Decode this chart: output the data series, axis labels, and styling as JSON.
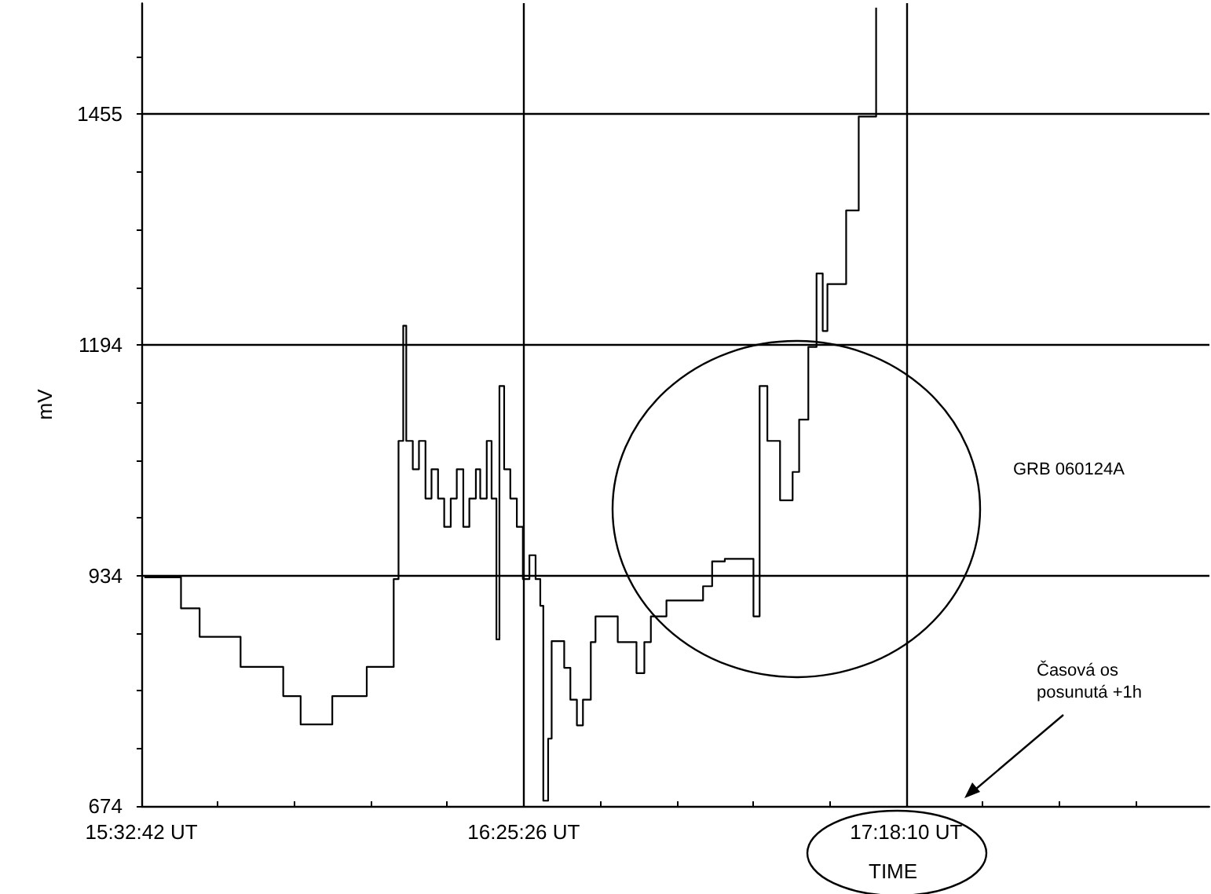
{
  "chart_data": {
    "type": "step",
    "xlabel": "TIME",
    "ylabel": "mV",
    "annotations": [
      "GRB 060124A",
      "Časová os posunutá +1h"
    ],
    "x": [
      "--01-24T15:33:07",
      "--01-24T15:38:10",
      "--01-24T15:40:44",
      "--01-24T15:46:23",
      "--01-24T15:52:16",
      "--01-24T15:54:40",
      "--01-24T15:59:02",
      "--01-24T16:03:47",
      "--01-24T16:07:05",
      "--01-24T16:07:30",
      "--01-24T16:08:10",
      "--01-24T16:08:49",
      "--01-24T16:09:14",
      "--01-24T16:10:08",
      "--01-24T16:10:59",
      "--01-24T16:11:53",
      "--01-24T16:12:43",
      "--01-24T16:13:37",
      "--01-24T16:14:28",
      "--01-24T16:15:22",
      "--01-24T16:16:12",
      "--01-24T16:17:06",
      "--01-24T16:17:56",
      "--01-24T16:18:50",
      "--01-24T16:19:26",
      "--01-24T16:20:20",
      "--01-24T16:21:00",
      "--01-24T16:21:40",
      "--01-24T16:22:05",
      "--01-24T16:22:44",
      "--01-24T16:23:35",
      "--01-24T16:24:29",
      "--01-24T16:25:19",
      "--01-24T16:26:13",
      "--01-24T16:27:04",
      "--01-24T16:27:43",
      "--01-24T16:28:08",
      "--01-24T16:28:48",
      "--01-24T16:29:17",
      "--01-24T16:31:01",
      "--01-24T16:31:52",
      "--01-24T16:32:46",
      "--01-24T16:33:36",
      "--01-24T16:34:41",
      "--01-24T16:35:20",
      "--01-24T16:38:24",
      "--01-24T16:40:59",
      "--01-24T16:42:04",
      "--01-24T16:42:58",
      "--01-24T16:45:07",
      "--01-24T16:50:10",
      "--01-24T16:51:25",
      "--01-24T16:53:10",
      "--01-24T16:57:07",
      "--01-24T16:57:58",
      "--01-24T16:59:02",
      "--01-24T17:00:47",
      "--01-24T17:02:31",
      "--01-24T17:03:25",
      "--01-24T17:04:41",
      "--01-24T17:05:49",
      "--01-24T17:06:40",
      "--01-24T17:07:19",
      "--01-24T17:09:54",
      "--01-24T17:11:38",
      "--01-24T17:14:02"
    ],
    "series": [
      {
        "color": "#000000",
        "values": [
          932,
          897,
          865,
          831,
          798,
          766,
          798,
          831,
          831,
          930,
          1086,
          1216,
          1086,
          1054,
          1086,
          1021,
          1054,
          1021,
          989,
          1021,
          1054,
          989,
          1021,
          1054,
          1021,
          1086,
          1021,
          862,
          1148,
          1054,
          1021,
          989,
          930,
          957,
          930,
          900,
          680,
          750,
          860,
          830,
          794,
          765,
          794,
          859,
          888,
          859,
          824,
          859,
          888,
          906,
          922,
          950,
          953,
          888,
          1148,
          1086,
          1019,
          1051,
          1110,
          1192,
          1275,
          1210,
          1263,
          1346,
          1452,
          1575
        ]
      }
    ],
    "xlim": [
      "--01-24T15:32:42",
      "--01-24T18:00:00"
    ],
    "xticks": [
      {
        "value": "--01-24T15:32:42",
        "label": "15:32:42 UT"
      },
      {
        "value": "--01-24T15:43:15",
        "label": null
      },
      {
        "value": "--01-24T15:53:48",
        "label": null
      },
      {
        "value": "--01-24T16:04:20",
        "label": null
      },
      {
        "value": "--01-24T16:14:53",
        "label": null
      },
      {
        "value": "--01-24T16:25:26",
        "label": "16:25:26 UT"
      },
      {
        "value": "--01-24T16:35:59",
        "label": null
      },
      {
        "value": "--01-24T16:46:31",
        "label": null
      },
      {
        "value": "--01-24T16:57:04",
        "label": null
      },
      {
        "value": "--01-24T17:07:37",
        "label": null
      },
      {
        "value": "--01-24T17:18:10",
        "label": "17:18:10 UT"
      },
      {
        "value": "--01-24T17:28:43",
        "label": null
      },
      {
        "value": "--01-24T17:39:15",
        "label": null
      },
      {
        "value": "--01-24T17:49:48",
        "label": null
      }
    ],
    "ylim": [
      674,
      1580
    ],
    "yticks": [
      674,
      {
        "value": 739,
        "label": null
      },
      {
        "value": 804,
        "label": null
      },
      {
        "value": 869,
        "label": null
      },
      934,
      {
        "value": 999,
        "label": null
      },
      {
        "value": 1064,
        "label": null
      },
      {
        "value": 1129,
        "label": null
      },
      1194,
      {
        "value": 1259,
        "label": null
      },
      {
        "value": 1324,
        "label": null
      },
      {
        "value": 1390,
        "label": null
      },
      1455,
      {
        "value": 1520,
        "label": null
      }
    ],
    "grid": true
  }
}
